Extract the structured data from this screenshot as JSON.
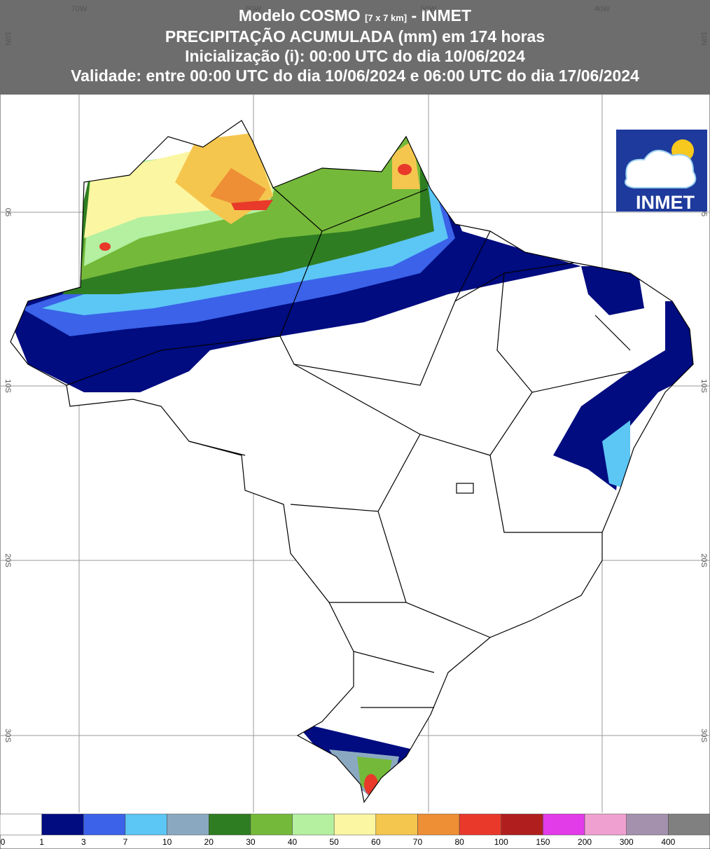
{
  "header": {
    "title": "Modelo COSMO",
    "title_note": "[7 x 7 km]",
    "title_suffix": "- INMET",
    "lines": [
      "PRECIPITAÇÃO ACUMULADA (mm) em 174 horas",
      "Inicialização (i): 00:00 UTC do dia 10/06/2024",
      "Validade: entre 00:00 UTC do dia 10/06/2024 e 06:00 UTC do dia 17/06/2024"
    ]
  },
  "map": {
    "lon_labels": [
      "70W",
      "60W",
      "50W",
      "40W"
    ],
    "lat_labels": [
      "10N",
      "05",
      "10S",
      "20S",
      "30S"
    ]
  },
  "logo": {
    "text": "INMET"
  },
  "legend": {
    "colors": [
      "#ffffff",
      "#000c80",
      "#3b62e8",
      "#5cc6f5",
      "#8aa9c0",
      "#2f7d22",
      "#75b93a",
      "#b4f0a0",
      "#fbf6a2",
      "#f5c64e",
      "#ee8e35",
      "#e8392b",
      "#b01f1e",
      "#e23be8",
      "#f0a0d0",
      "#a391ad",
      "#808080"
    ],
    "labels": [
      "0",
      "1",
      "3",
      "7",
      "10",
      "20",
      "30",
      "40",
      "50",
      "60",
      "70",
      "80",
      "100",
      "150",
      "200",
      "300",
      "400"
    ]
  }
}
